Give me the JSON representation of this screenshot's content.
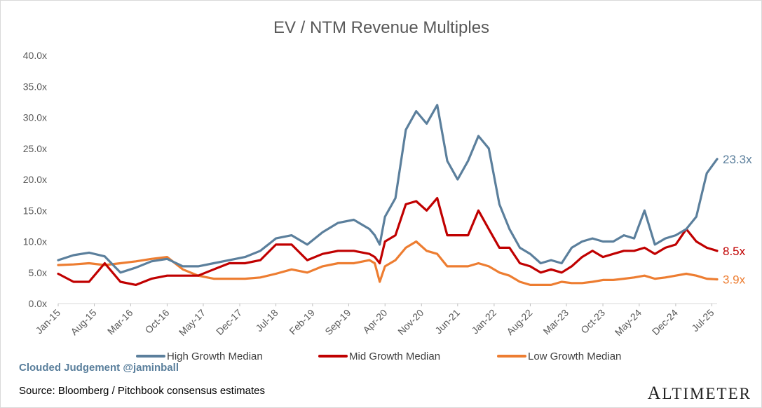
{
  "chart_data": {
    "type": "line",
    "title": "EV / NTM Revenue Multiples",
    "xlabel": "",
    "ylabel": "",
    "ylim": [
      0,
      40
    ],
    "y_ticks": [
      "0.0x",
      "5.0x",
      "10.0x",
      "15.0x",
      "20.0x",
      "25.0x",
      "30.0x",
      "35.0x",
      "40.0x"
    ],
    "x_ticks": [
      "Jan-15",
      "Aug-15",
      "Mar-16",
      "Oct-16",
      "May-17",
      "Dec-17",
      "Jul-18",
      "Feb-19",
      "Sep-19",
      "Apr-20",
      "Nov-20",
      "Jun-21",
      "Jan-22",
      "Aug-22",
      "Mar-23",
      "Oct-23",
      "May-24",
      "Dec-24",
      "Jul-25"
    ],
    "x": [
      "2015-01",
      "2015-04",
      "2015-07",
      "2015-10",
      "2016-01",
      "2016-04",
      "2016-07",
      "2016-10",
      "2017-01",
      "2017-04",
      "2017-07",
      "2017-10",
      "2018-01",
      "2018-04",
      "2018-07",
      "2018-10",
      "2019-01",
      "2019-04",
      "2019-07",
      "2019-10",
      "2020-01",
      "2020-02",
      "2020-03",
      "2020-04",
      "2020-06",
      "2020-08",
      "2020-10",
      "2020-12",
      "2021-02",
      "2021-04",
      "2021-06",
      "2021-08",
      "2021-10",
      "2021-12",
      "2022-02",
      "2022-04",
      "2022-06",
      "2022-08",
      "2022-10",
      "2022-12",
      "2023-02",
      "2023-04",
      "2023-06",
      "2023-08",
      "2023-10",
      "2023-12",
      "2024-02",
      "2024-04",
      "2024-06",
      "2024-08",
      "2024-10",
      "2024-12",
      "2025-02",
      "2025-04",
      "2025-06",
      "2025-08"
    ],
    "grid": false,
    "legend": "bottom",
    "series": [
      {
        "name": "High Growth Median",
        "color": "#5b7f9c",
        "end_label": "23.3x",
        "values": [
          7.0,
          7.8,
          8.2,
          7.6,
          5.0,
          5.8,
          6.8,
          7.2,
          6.0,
          6.0,
          6.5,
          7.0,
          7.5,
          8.5,
          10.5,
          11.0,
          9.5,
          11.5,
          13.0,
          13.5,
          12.0,
          11.0,
          9.5,
          14.0,
          17.0,
          28.0,
          31.0,
          29.0,
          32.0,
          23.0,
          20.0,
          23.0,
          27.0,
          25.0,
          16.0,
          12.0,
          9.0,
          8.0,
          6.5,
          7.0,
          6.5,
          9.0,
          10.0,
          10.5,
          10.0,
          10.0,
          11.0,
          10.5,
          15.0,
          9.5,
          10.5,
          11.0,
          12.0,
          14.0,
          21.0,
          23.3
        ]
      },
      {
        "name": "Mid Growth Median",
        "color": "#c00000",
        "end_label": "8.5x",
        "values": [
          4.8,
          3.5,
          3.5,
          6.5,
          3.5,
          3.0,
          4.0,
          4.5,
          4.5,
          4.5,
          5.5,
          6.5,
          6.5,
          7.0,
          9.5,
          9.5,
          7.0,
          8.0,
          8.5,
          8.5,
          8.0,
          7.5,
          6.5,
          10.0,
          11.0,
          16.0,
          16.5,
          15.0,
          17.0,
          11.0,
          11.0,
          11.0,
          15.0,
          12.0,
          9.0,
          9.0,
          6.5,
          6.0,
          5.0,
          5.5,
          5.0,
          6.0,
          7.5,
          8.5,
          7.5,
          8.0,
          8.5,
          8.5,
          9.0,
          8.0,
          9.0,
          9.5,
          12.0,
          10.0,
          9.0,
          8.5
        ]
      },
      {
        "name": "Low Growth Median",
        "color": "#ed7d31",
        "end_label": "3.9x",
        "values": [
          6.2,
          6.3,
          6.5,
          6.2,
          6.5,
          6.8,
          7.2,
          7.5,
          5.5,
          4.5,
          4.0,
          4.0,
          4.0,
          4.2,
          4.8,
          5.5,
          5.0,
          6.0,
          6.5,
          6.5,
          7.0,
          6.5,
          3.5,
          6.0,
          7.0,
          9.0,
          10.0,
          8.5,
          8.0,
          6.0,
          6.0,
          6.0,
          6.5,
          6.0,
          5.0,
          4.5,
          3.5,
          3.0,
          3.0,
          3.0,
          3.5,
          3.3,
          3.3,
          3.5,
          3.8,
          3.8,
          4.0,
          4.2,
          4.5,
          4.0,
          4.2,
          4.5,
          4.8,
          4.5,
          4.0,
          3.9
        ]
      }
    ]
  },
  "footer": {
    "watermark": "Clouded Judgement @jaminball",
    "source": "Source: Bloomberg / Pitchbook consensus estimates",
    "logo_first": "A",
    "logo_rest": "LTIMETER"
  }
}
